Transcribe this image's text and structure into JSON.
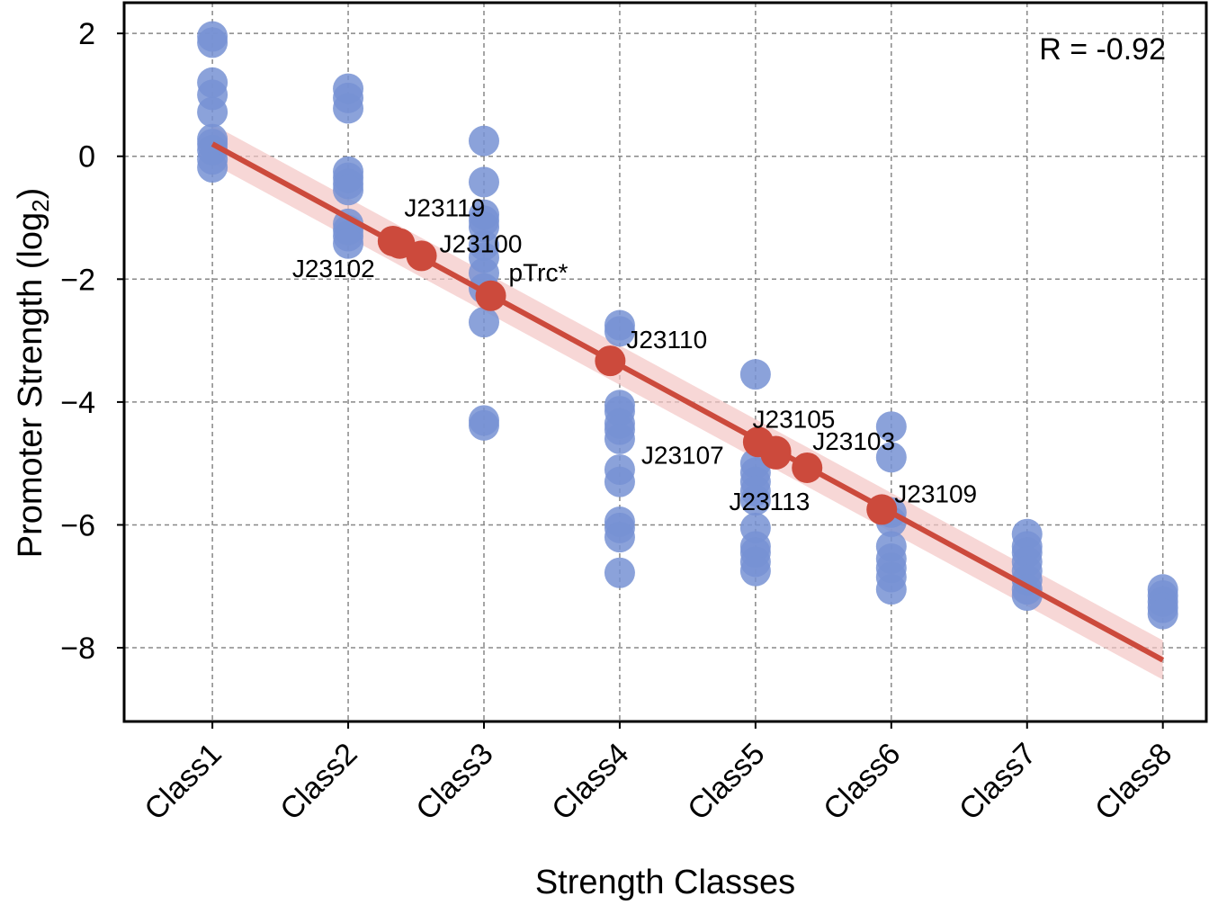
{
  "chart_data": {
    "type": "scatter",
    "xlabel": "Strength Classes",
    "ylabel_main": "Promoter Strength (log",
    "ylabel_sub": "2",
    "ylabel_close": ")",
    "categories": [
      "Class1",
      "Class2",
      "Class3",
      "Class4",
      "Class5",
      "Class6",
      "Class7",
      "Class8"
    ],
    "ylim": [
      -9.2,
      2.5
    ],
    "xlim": [
      0.35,
      8.32
    ],
    "yticks": [
      2,
      0,
      -2,
      -4,
      -6,
      -8
    ],
    "ytick_labels": [
      "2",
      "0",
      "−2",
      "−4",
      "−6",
      "−8"
    ],
    "grid": true,
    "annotation": "R = -0.92",
    "colors": {
      "points": "#7792d4",
      "fit": "#cc4a3c",
      "band": "#f4c6c4",
      "grid": "#888888"
    },
    "series": [
      {
        "type": "scatter",
        "points": [
          {
            "x": 1,
            "y": 1.95
          },
          {
            "x": 1,
            "y": 1.85
          },
          {
            "x": 1,
            "y": 1.2
          },
          {
            "x": 1,
            "y": 1.0
          },
          {
            "x": 1,
            "y": 0.72
          },
          {
            "x": 1,
            "y": 0.28
          },
          {
            "x": 1,
            "y": 0.2
          },
          {
            "x": 1,
            "y": 0.1
          },
          {
            "x": 1,
            "y": -0.05
          },
          {
            "x": 1,
            "y": -0.18
          },
          {
            "x": 2,
            "y": 1.1
          },
          {
            "x": 2,
            "y": 0.95
          },
          {
            "x": 2,
            "y": 0.78
          },
          {
            "x": 2,
            "y": -0.25
          },
          {
            "x": 2,
            "y": -0.35
          },
          {
            "x": 2,
            "y": -0.45
          },
          {
            "x": 2,
            "y": -0.55
          },
          {
            "x": 2,
            "y": -1.1
          },
          {
            "x": 2,
            "y": -1.2
          },
          {
            "x": 2,
            "y": -1.3
          },
          {
            "x": 2,
            "y": -1.42
          },
          {
            "x": 3,
            "y": 0.25
          },
          {
            "x": 3,
            "y": -0.42
          },
          {
            "x": 3,
            "y": -0.95
          },
          {
            "x": 3,
            "y": -1.05
          },
          {
            "x": 3,
            "y": -1.15
          },
          {
            "x": 3,
            "y": -1.45
          },
          {
            "x": 3,
            "y": -1.65
          },
          {
            "x": 3,
            "y": -1.9
          },
          {
            "x": 3,
            "y": -2.15
          },
          {
            "x": 3,
            "y": -2.7
          },
          {
            "x": 3,
            "y": -4.3
          },
          {
            "x": 3,
            "y": -4.38
          },
          {
            "x": 4,
            "y": -2.75
          },
          {
            "x": 4,
            "y": -2.85
          },
          {
            "x": 4,
            "y": -4.05
          },
          {
            "x": 4,
            "y": -4.15
          },
          {
            "x": 4,
            "y": -4.35
          },
          {
            "x": 4,
            "y": -4.45
          },
          {
            "x": 4,
            "y": -4.6
          },
          {
            "x": 4,
            "y": -5.1
          },
          {
            "x": 4,
            "y": -5.3
          },
          {
            "x": 4,
            "y": -5.95
          },
          {
            "x": 4,
            "y": -6.05
          },
          {
            "x": 4,
            "y": -6.2
          },
          {
            "x": 4,
            "y": -6.78
          },
          {
            "x": 5,
            "y": -3.55
          },
          {
            "x": 5,
            "y": -5.0
          },
          {
            "x": 5,
            "y": -5.15
          },
          {
            "x": 5,
            "y": -5.3
          },
          {
            "x": 5,
            "y": -5.45
          },
          {
            "x": 5,
            "y": -5.6
          },
          {
            "x": 5,
            "y": -6.05
          },
          {
            "x": 5,
            "y": -6.35
          },
          {
            "x": 5,
            "y": -6.45
          },
          {
            "x": 5,
            "y": -6.6
          },
          {
            "x": 5,
            "y": -6.75
          },
          {
            "x": 6,
            "y": -4.4
          },
          {
            "x": 6,
            "y": -4.9
          },
          {
            "x": 6,
            "y": -5.8
          },
          {
            "x": 6,
            "y": -5.95
          },
          {
            "x": 6,
            "y": -6.35
          },
          {
            "x": 6,
            "y": -6.55
          },
          {
            "x": 6,
            "y": -6.7
          },
          {
            "x": 6,
            "y": -6.85
          },
          {
            "x": 6,
            "y": -7.05
          },
          {
            "x": 7,
            "y": -6.15
          },
          {
            "x": 7,
            "y": -6.35
          },
          {
            "x": 7,
            "y": -6.45
          },
          {
            "x": 7,
            "y": -6.6
          },
          {
            "x": 7,
            "y": -6.75
          },
          {
            "x": 7,
            "y": -6.9
          },
          {
            "x": 7,
            "y": -7.05
          },
          {
            "x": 7,
            "y": -7.15
          },
          {
            "x": 8,
            "y": -7.05
          },
          {
            "x": 8,
            "y": -7.15
          },
          {
            "x": 8,
            "y": -7.25
          },
          {
            "x": 8,
            "y": -7.35
          },
          {
            "x": 8,
            "y": -7.45
          }
        ]
      },
      {
        "type": "line",
        "fit": [
          {
            "x": 1.0,
            "y": 0.2
          },
          {
            "x": 8.0,
            "y": -8.2
          }
        ],
        "band_halfwidth": 0.32
      },
      {
        "type": "labeled_points",
        "points": [
          {
            "name": "J23102",
            "x": 2.33,
            "y": -1.38,
            "label_pos": "below-left"
          },
          {
            "name": "J23119",
            "x": 2.38,
            "y": -1.42,
            "label_pos": "above"
          },
          {
            "name": "J23100",
            "x": 2.54,
            "y": -1.62,
            "label_pos": "above-right"
          },
          {
            "name": "pTrc*",
            "x": 3.05,
            "y": -2.27,
            "label_pos": "above-right"
          },
          {
            "name": "J23110",
            "x": 3.93,
            "y": -3.33,
            "label_pos": "above-right"
          },
          {
            "name": "J23107",
            "x": 5.02,
            "y": -4.65,
            "label_pos": "left"
          },
          {
            "name": "J23105",
            "x": 5.15,
            "y": -4.8,
            "label_pos": "above"
          },
          {
            "name": "J23113",
            "x": 5.15,
            "y": -4.85,
            "label_pos": "below-left"
          },
          {
            "name": "J23103",
            "x": 5.38,
            "y": -5.07,
            "label_pos": "above-right"
          },
          {
            "name": "J23109",
            "x": 5.93,
            "y": -5.75,
            "label_pos": "right"
          }
        ]
      }
    ]
  }
}
